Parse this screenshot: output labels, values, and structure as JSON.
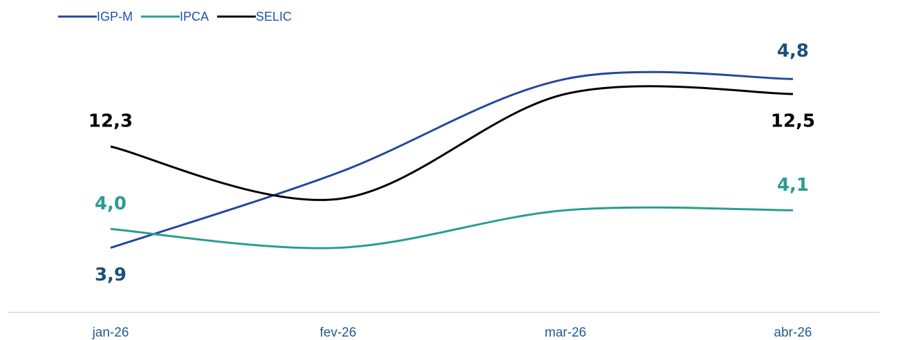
{
  "chart_data": {
    "type": "line",
    "categories": [
      "jan-26",
      "fev-26",
      "mar-26",
      "abr-26"
    ],
    "series": [
      {
        "name": "IGP-M",
        "color": "#24479b",
        "label_color": "#1b4f7c",
        "values": [
          3.9,
          4.3,
          4.8,
          4.8
        ],
        "value_labels": [
          "3,9",
          null,
          null,
          "4,8"
        ],
        "ylim": [
          3.6,
          5.0
        ]
      },
      {
        "name": "IPCA",
        "color": "#2a9d8f",
        "label_color": "#2a9d8f",
        "values": [
          4.0,
          3.9,
          4.1,
          4.1
        ],
        "value_labels": [
          "4,0",
          null,
          null,
          "4,1"
        ],
        "ylim": [
          3.6,
          5.0
        ]
      },
      {
        "name": "SELIC",
        "color": "#000000",
        "label_color": "#000000",
        "values": [
          12.3,
          12.1,
          12.5,
          12.5
        ],
        "value_labels": [
          "12,3",
          null,
          null,
          "12,5"
        ],
        "ylim": [
          11.7,
          12.7
        ]
      }
    ],
    "legend": "top-left"
  }
}
